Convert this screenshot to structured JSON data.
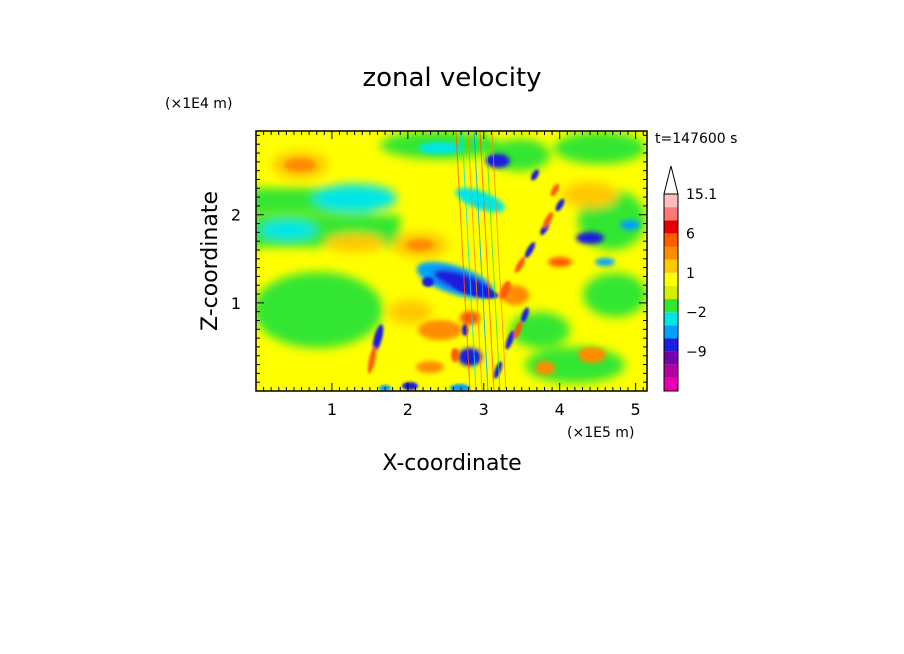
{
  "chart_data": {
    "type": "heatmap",
    "title": "zonal velocity",
    "time_label": "t=147600 s",
    "xlabel": "X-coordinate",
    "ylabel": "Z-coordinate",
    "x_unit": "(×1E5 m)",
    "y_unit": "(×1E4 m)",
    "xlim": [
      0,
      5.15
    ],
    "ylim": [
      0,
      2.95
    ],
    "x_ticks": [
      1,
      2,
      3,
      4,
      5
    ],
    "y_ticks": [
      1,
      2
    ],
    "colorbar": {
      "levels": [
        -15,
        -12,
        -9,
        -6,
        -3,
        -2,
        -1,
        0,
        1,
        2,
        4,
        6,
        9,
        12,
        15.1
      ],
      "colors": [
        "#e600b4",
        "#b400a0",
        "#7800aa",
        "#1e1edc",
        "#00a0ff",
        "#00e6e6",
        "#32e632",
        "#d2f000",
        "#ffff00",
        "#ffc800",
        "#ff8c00",
        "#ff5a00",
        "#e60000",
        "#ff7878",
        "#ffbebe"
      ],
      "over_color": "#ffffff",
      "tick_labels": [
        "15.1",
        "6",
        "1",
        "−2",
        "−9"
      ]
    }
  }
}
